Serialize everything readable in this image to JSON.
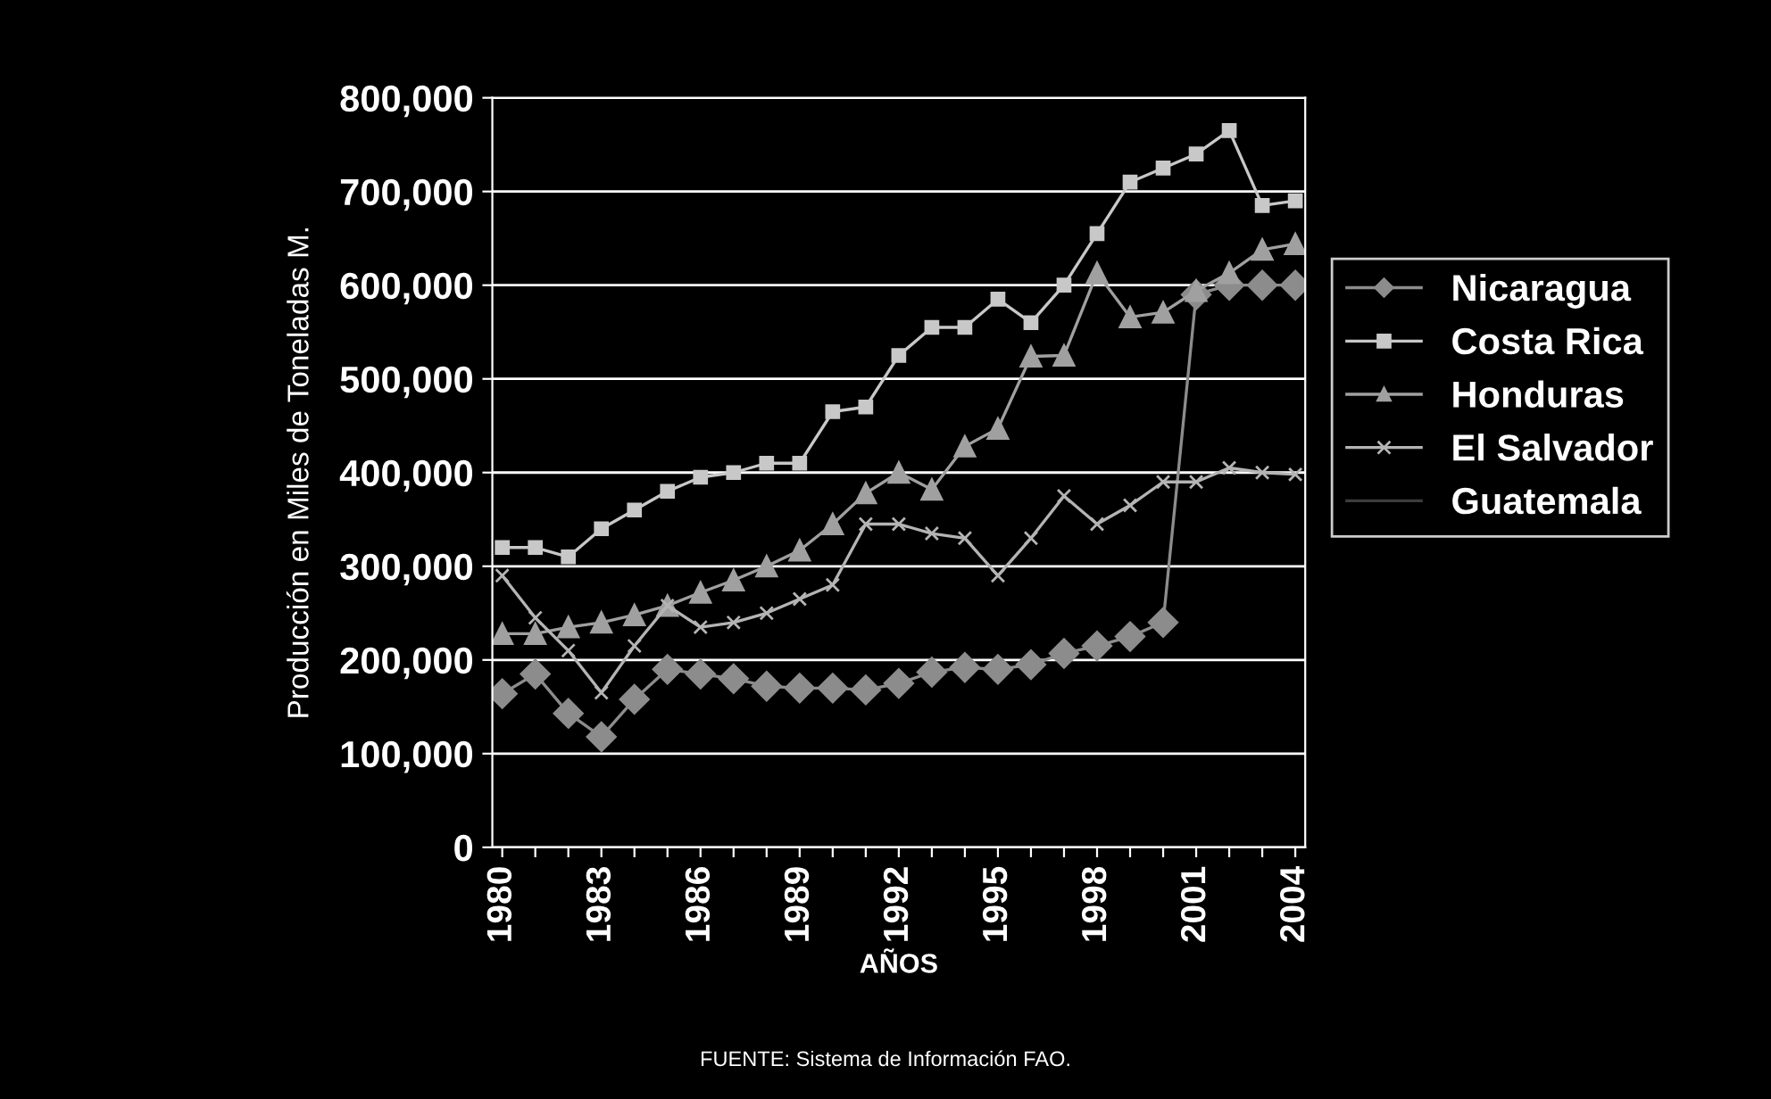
{
  "chart_data": {
    "type": "line",
    "xlabel": "AÑOS",
    "ylabel": "Producción en Miles de Toneladas M.",
    "categories": [
      "1980",
      null,
      null,
      "1983",
      null,
      null,
      "1986",
      null,
      null,
      "1989",
      null,
      null,
      "1992",
      null,
      null,
      "1995",
      null,
      null,
      "1998",
      null,
      null,
      "2001",
      null,
      null,
      "2004"
    ],
    "series": [
      {
        "name": "Nicaragua",
        "color": "#8c8c8c",
        "marker": "diamond",
        "values": [
          164000,
          185000,
          143000,
          118000,
          158000,
          190000,
          185000,
          180000,
          172000,
          170000,
          170000,
          168000,
          175000,
          187000,
          192000,
          190000,
          195000,
          207000,
          215000,
          225000,
          240000,
          590000,
          600000,
          600000,
          600000
        ]
      },
      {
        "name": "Costa Rica",
        "color": "#c8c8c8",
        "marker": "square",
        "values": [
          320000,
          320000,
          310000,
          340000,
          360000,
          380000,
          395000,
          400000,
          410000,
          410000,
          465000,
          470000,
          525000,
          555000,
          555000,
          585000,
          560000,
          600000,
          655000,
          710000,
          725000,
          740000,
          765000,
          685000,
          690000
        ]
      },
      {
        "name": "Honduras",
        "color": "#a0a0a0",
        "marker": "triangle",
        "values": [
          228000,
          228000,
          235000,
          240000,
          248000,
          258000,
          272000,
          285000,
          300000,
          317000,
          345000,
          378000,
          400000,
          382000,
          428000,
          447000,
          524000,
          525000,
          613000,
          566000,
          571000,
          594000,
          613000,
          638000,
          644000
        ]
      },
      {
        "name": "El Salvador",
        "color": "#b4b4b4",
        "marker": "cross",
        "values": [
          290000,
          245000,
          210000,
          165000,
          215000,
          258000,
          235000,
          240000,
          250000,
          265000,
          280000,
          345000,
          345000,
          335000,
          330000,
          290000,
          330000,
          375000,
          345000,
          365000,
          390000,
          390000,
          405000,
          400000,
          398000
        ]
      },
      {
        "name": "Guatemala",
        "color": "#3c3c3c",
        "marker": "none",
        "values": [
          null,
          null,
          null,
          null,
          null,
          null,
          null,
          null,
          null,
          null,
          null,
          null,
          null,
          null,
          null,
          null,
          null,
          null,
          null,
          null,
          null,
          null,
          null,
          null,
          null
        ]
      }
    ],
    "ylim": [
      0,
      800000
    ],
    "yticks": [
      {
        "value": 0,
        "label": "0"
      },
      {
        "value": 100000,
        "label": "100,000"
      },
      {
        "value": 200000,
        "label": "200,000"
      },
      {
        "value": 300000,
        "label": "300,000"
      },
      {
        "value": 400000,
        "label": "400,000"
      },
      {
        "value": 500000,
        "label": "500,000"
      },
      {
        "value": 600000,
        "label": "600,000"
      },
      {
        "value": 700000,
        "label": "700,000"
      },
      {
        "value": 800000,
        "label": "800,000"
      }
    ],
    "grid": "y",
    "legend": "right",
    "annotations": [
      "FUENTE: Sistema de Información FAO."
    ]
  }
}
